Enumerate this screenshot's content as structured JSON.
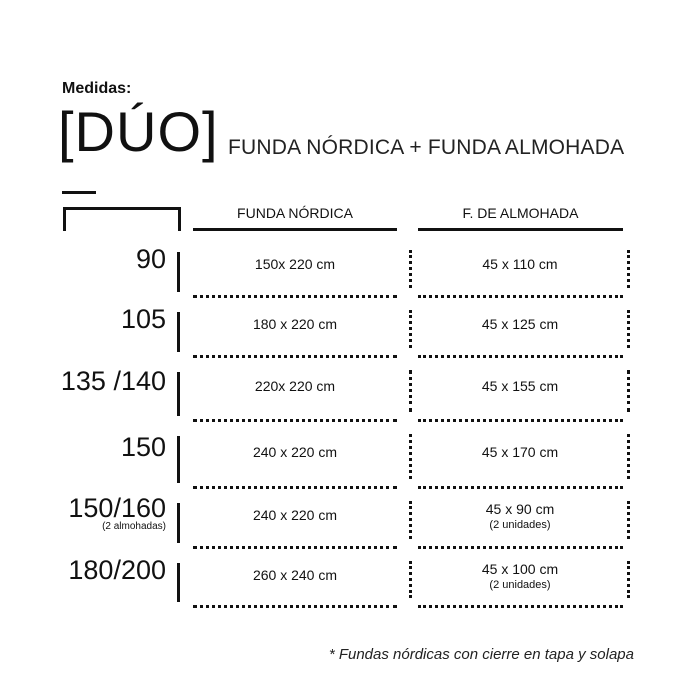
{
  "header": {
    "label": "Medidas:",
    "brand": "[DÚO]",
    "subtitle": "FUNDA NÓRDICA + FUNDA ALMOHADA"
  },
  "table": {
    "icon": "bed-icon",
    "columns": [
      "FUNDA NÓRDICA",
      "F. DE ALMOHADA"
    ],
    "rows": [
      {
        "size": "90",
        "size_note": "",
        "duvet": "150x 220 cm",
        "pillow": "45 x 110  cm",
        "pillow_note": ""
      },
      {
        "size": "105",
        "size_note": "",
        "duvet": "180 x 220 cm",
        "pillow": "45 x 125 cm",
        "pillow_note": ""
      },
      {
        "size": "135 /140",
        "size_note": "",
        "duvet": "220x 220 cm",
        "pillow": "45 x 155 cm",
        "pillow_note": ""
      },
      {
        "size": "150",
        "size_note": "",
        "duvet": "240 x 220 cm",
        "pillow": "45 x 170 cm",
        "pillow_note": ""
      },
      {
        "size": "150/160",
        "size_note": "(2 almohadas)",
        "duvet": "240 x 220 cm",
        "pillow": "45 x 90 cm",
        "pillow_note": "(2 unidades)"
      },
      {
        "size": "180/200",
        "size_note": "",
        "duvet": "260 x 240 cm",
        "pillow": "45 x 100 cm",
        "pillow_note": "(2 unidades)"
      }
    ]
  },
  "footer": "* Fundas nórdicas con cierre en tapa y solapa"
}
